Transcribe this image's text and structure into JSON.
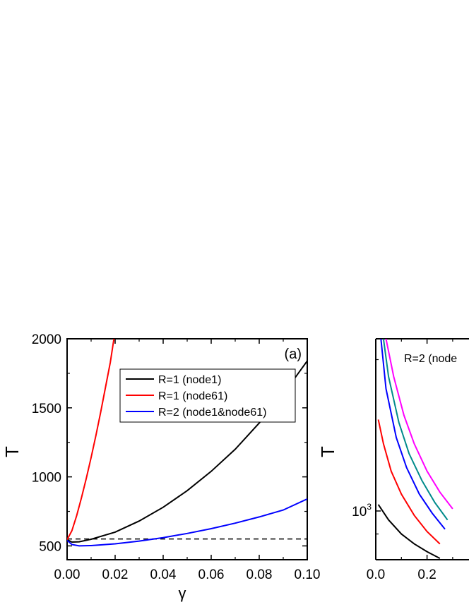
{
  "chart_data": [
    {
      "panel": "(a)",
      "type": "line",
      "xlabel": "γ",
      "ylabel": "T",
      "xlim": [
        0.0,
        0.1
      ],
      "ylim": [
        400,
        2000
      ],
      "x_ticks": [
        0.0,
        0.02,
        0.04,
        0.06,
        0.08,
        0.1
      ],
      "x_tick_labels": [
        "0.00",
        "0.02",
        "0.04",
        "0.06",
        "0.08",
        "0.10"
      ],
      "y_ticks": [
        500,
        1000,
        1500,
        2000
      ],
      "y_tick_labels": [
        "500",
        "1000",
        "1500",
        "2000"
      ],
      "legend": {
        "placement": "top-right"
      },
      "grid": false,
      "reference_line": {
        "y": 550,
        "style": "dashed",
        "color": "#000000"
      },
      "series": [
        {
          "name": "R=1 (node1)",
          "color": "#000000",
          "points": [
            [
              0.0,
              545
            ],
            [
              0.002,
              528
            ],
            [
              0.005,
              530
            ],
            [
              0.01,
              548
            ],
            [
              0.02,
              600
            ],
            [
              0.03,
              680
            ],
            [
              0.04,
              780
            ],
            [
              0.05,
              900
            ],
            [
              0.06,
              1040
            ],
            [
              0.07,
              1200
            ],
            [
              0.08,
              1390
            ],
            [
              0.09,
              1600
            ],
            [
              0.1,
              1840
            ]
          ]
        },
        {
          "name": "R=1 (node61)",
          "color": "#ff0000",
          "points": [
            [
              0.0,
              545
            ],
            [
              0.002,
              610
            ],
            [
              0.004,
              720
            ],
            [
              0.006,
              850
            ],
            [
              0.008,
              990
            ],
            [
              0.01,
              1140
            ],
            [
              0.012,
              1300
            ],
            [
              0.014,
              1470
            ],
            [
              0.016,
              1650
            ],
            [
              0.018,
              1830
            ],
            [
              0.0195,
              2000
            ]
          ]
        },
        {
          "name": "R=2 (node1&node61)",
          "color": "#0000ff",
          "points": [
            [
              0.0,
              540
            ],
            [
              0.002,
              510
            ],
            [
              0.005,
              500
            ],
            [
              0.01,
              502
            ],
            [
              0.02,
              515
            ],
            [
              0.03,
              535
            ],
            [
              0.04,
              560
            ],
            [
              0.05,
              590
            ],
            [
              0.06,
              625
            ],
            [
              0.07,
              665
            ],
            [
              0.08,
              710
            ],
            [
              0.09,
              760
            ],
            [
              0.1,
              840
            ]
          ]
        }
      ]
    },
    {
      "type": "line",
      "ylabel": "T",
      "y_scale": "log",
      "xlim": [
        0.0,
        0.3
      ],
      "ylim": [
        800,
        2200
      ],
      "x_ticks": [
        0.0,
        0.2
      ],
      "x_tick_labels": [
        "0.0",
        "0.2"
      ],
      "y_ticks": [
        1000
      ],
      "y_tick_labels": [
        "10",
        "3"
      ],
      "annotation": "R=2 (node",
      "series": [
        {
          "color": "#000000",
          "points": [
            [
              0.01,
              1030
            ],
            [
              0.05,
              960
            ],
            [
              0.1,
              900
            ],
            [
              0.15,
              860
            ],
            [
              0.2,
              830
            ],
            [
              0.25,
              805
            ]
          ]
        },
        {
          "color": "#ff0000",
          "points": [
            [
              0.01,
              1520
            ],
            [
              0.03,
              1360
            ],
            [
              0.06,
              1200
            ],
            [
              0.1,
              1080
            ],
            [
              0.15,
              980
            ],
            [
              0.2,
              910
            ],
            [
              0.25,
              860
            ]
          ]
        },
        {
          "color": "#0000ff",
          "points": [
            [
              0.02,
              2200
            ],
            [
              0.04,
              1750
            ],
            [
              0.08,
              1400
            ],
            [
              0.12,
              1220
            ],
            [
              0.17,
              1080
            ],
            [
              0.22,
              990
            ],
            [
              0.27,
              920
            ]
          ]
        },
        {
          "color": "#008b8b",
          "points": [
            [
              0.03,
              2200
            ],
            [
              0.05,
              1850
            ],
            [
              0.09,
              1500
            ],
            [
              0.13,
              1300
            ],
            [
              0.18,
              1150
            ],
            [
              0.23,
              1040
            ],
            [
              0.28,
              960
            ]
          ]
        },
        {
          "color": "#ff00ff",
          "points": [
            [
              0.04,
              2200
            ],
            [
              0.07,
              1850
            ],
            [
              0.11,
              1550
            ],
            [
              0.15,
              1360
            ],
            [
              0.2,
              1200
            ],
            [
              0.25,
              1090
            ],
            [
              0.3,
              1010
            ]
          ]
        }
      ]
    }
  ]
}
